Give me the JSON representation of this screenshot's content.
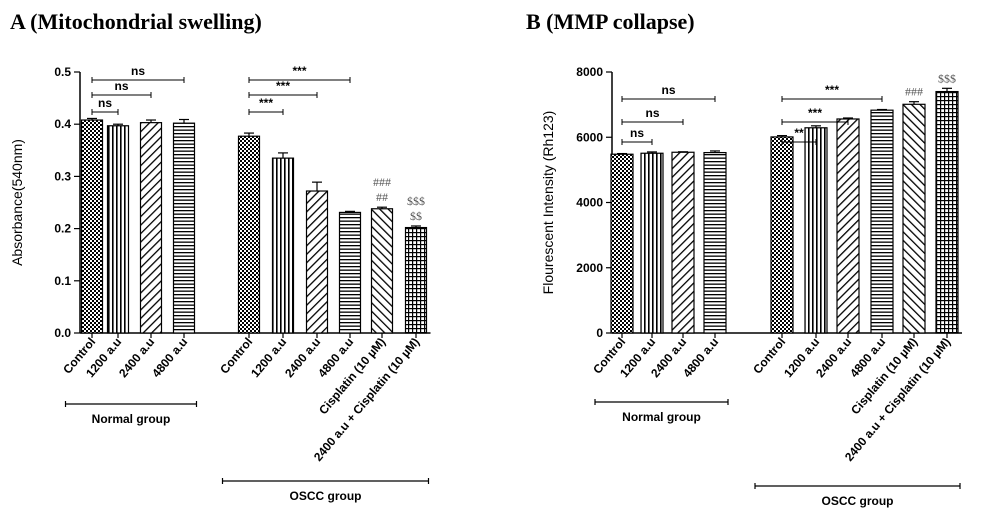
{
  "chart_data": [
    {
      "type": "bar",
      "panel": "A",
      "title": "A   (Mitochondrial swelling)",
      "ylabel": "Absorbance(540nm)",
      "ylim": [
        0,
        0.5
      ],
      "yticks": [
        "0.0",
        "0.1",
        "0.2",
        "0.3",
        "0.4",
        "0.5"
      ],
      "categories": [
        "Control",
        "1200 a.u",
        "2400 a.u",
        "4800 a.u",
        "Control",
        "1200 a.u",
        "2400 a.u",
        "4800 a.u",
        "Cisplatin (10 µM)",
        "2400 a.u + Cisplatin (10 µM)"
      ],
      "values": [
        0.408,
        0.397,
        0.403,
        0.402,
        0.377,
        0.335,
        0.272,
        0.231,
        0.238,
        0.202
      ],
      "errors": [
        0.003,
        0.003,
        0.005,
        0.007,
        0.006,
        0.01,
        0.017,
        0.002,
        0.003,
        0.003
      ],
      "patterns": [
        "check",
        "vline",
        "diag",
        "hline",
        "check",
        "vline",
        "diag",
        "hline",
        "diag2",
        "grid"
      ],
      "groups": [
        {
          "label": "Normal group",
          "start": 0,
          "end": 3
        },
        {
          "label": "OSCC group",
          "start": 4,
          "end": 9
        }
      ],
      "comparisons": [
        {
          "from": 0,
          "to": 1,
          "label": "ns"
        },
        {
          "from": 0,
          "to": 2,
          "label": "ns"
        },
        {
          "from": 0,
          "to": 3,
          "label": "ns"
        },
        {
          "from": 4,
          "to": 5,
          "label": "***"
        },
        {
          "from": 4,
          "to": 6,
          "label": "***"
        },
        {
          "from": 4,
          "to": 7,
          "label": "***"
        }
      ],
      "bar_symbols": [
        {
          "bar": 8,
          "lines": [
            "###",
            "##"
          ]
        },
        {
          "bar": 9,
          "lines": [
            "$$$",
            "$$"
          ]
        }
      ]
    },
    {
      "type": "bar",
      "panel": "B",
      "title": "B (MMP collapse)",
      "ylabel": "Flourescent Intensity (Rh123)",
      "ylim": [
        0,
        8000
      ],
      "yticks": [
        "0",
        "2000",
        "4000",
        "6000",
        "8000"
      ],
      "categories": [
        "Control",
        "1200 a.u",
        "2400 a.u",
        "4800 a.u",
        "Control",
        "1200 a.u",
        "2400 a.u",
        "4800 a.u",
        "Cisplatin (10 µM)",
        "2400 a.u + Cisplatin (10 µM)"
      ],
      "values": [
        5480,
        5510,
        5540,
        5530,
        6010,
        6290,
        6560,
        6830,
        7010,
        7400
      ],
      "errors": [
        20,
        40,
        15,
        50,
        40,
        60,
        30,
        20,
        80,
        100
      ],
      "patterns": [
        "check",
        "vline",
        "diag",
        "hline",
        "check",
        "vline",
        "diag",
        "hline",
        "diag2",
        "grid"
      ],
      "groups": [
        {
          "label": "Normal group",
          "start": 0,
          "end": 3
        },
        {
          "label": "OSCC group",
          "start": 4,
          "end": 9
        }
      ],
      "comparisons": [
        {
          "from": 0,
          "to": 1,
          "label": "ns"
        },
        {
          "from": 0,
          "to": 2,
          "label": "ns"
        },
        {
          "from": 0,
          "to": 3,
          "label": "ns"
        },
        {
          "from": 4,
          "to": 5,
          "label": "**"
        },
        {
          "from": 4,
          "to": 6,
          "label": "***"
        },
        {
          "from": 4,
          "to": 7,
          "label": "***"
        }
      ],
      "bar_symbols": [
        {
          "bar": 8,
          "lines": [
            "###"
          ]
        },
        {
          "bar": 9,
          "lines": [
            "$$$"
          ]
        }
      ]
    }
  ]
}
